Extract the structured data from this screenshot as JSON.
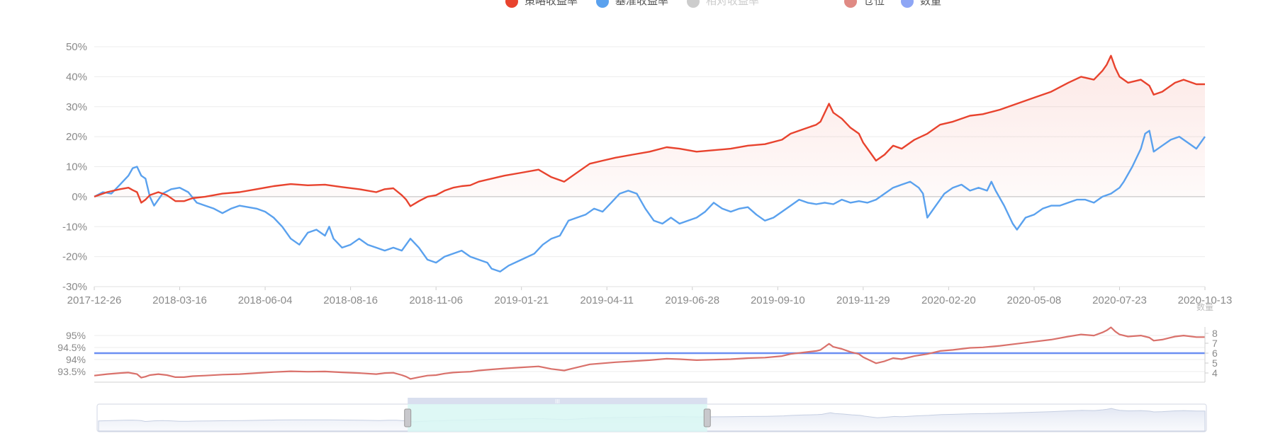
{
  "legend": {
    "items": [
      {
        "label": "策略收益率",
        "color": "#e8432e",
        "state": "on"
      },
      {
        "label": "基准收益率",
        "color": "#5aa1ee",
        "state": "on"
      },
      {
        "label": "相对收益率",
        "color": "#cccccc",
        "state": "off"
      },
      {
        "label": "仓位",
        "color": "#e08a84",
        "state": "on"
      },
      {
        "label": "数量",
        "color": "#8ea6f5",
        "state": "on"
      }
    ]
  },
  "colors": {
    "strategy": "#e8432e",
    "benchmark": "#5aa1ee",
    "position": "#d9716b",
    "quantity": "#6c8ff2",
    "grid": "#ececec",
    "zero_line": "#c8c8c8",
    "slider_fill": "#d8f7f3"
  },
  "chart_data": [
    {
      "type": "line",
      "title": "",
      "xlabel": "",
      "ylabel": "",
      "ylim": [
        -30,
        50
      ],
      "y_unit": "%",
      "y_ticks": [
        "-30%",
        "-20%",
        "-10%",
        "0%",
        "10%",
        "20%",
        "30%",
        "40%",
        "50%"
      ],
      "x_ticks": [
        "2017-12-26",
        "2018-03-16",
        "2018-06-04",
        "2018-08-16",
        "2018-11-06",
        "2019-01-21",
        "2019-04-11",
        "2019-06-28",
        "2019-09-10",
        "2019-11-29",
        "2020-02-20",
        "2020-05-08",
        "2020-07-23",
        "2020-10-13"
      ],
      "grid": true,
      "legend_position": "top",
      "series": [
        {
          "name": "策略收益率",
          "fill_area": true,
          "points": [
            [
              0,
              0
            ],
            [
              3,
              1.5
            ],
            [
              6,
              2.5
            ],
            [
              8,
              3
            ],
            [
              9,
              2.2
            ],
            [
              10,
              1.5
            ],
            [
              11,
              -2
            ],
            [
              12,
              -1
            ],
            [
              13,
              0.5
            ],
            [
              15,
              1.5
            ],
            [
              17,
              0.5
            ],
            [
              19,
              -1.5
            ],
            [
              21,
              -1.5
            ],
            [
              23,
              -0.5
            ],
            [
              26,
              0
            ],
            [
              30,
              1
            ],
            [
              34,
              1.5
            ],
            [
              38,
              2.5
            ],
            [
              42,
              3.5
            ],
            [
              46,
              4.2
            ],
            [
              50,
              3.8
            ],
            [
              54,
              4
            ],
            [
              58,
              3.2
            ],
            [
              62,
              2.5
            ],
            [
              66,
              1.5
            ],
            [
              68,
              2.5
            ],
            [
              70,
              2.8
            ],
            [
              72,
              0.5
            ],
            [
              73,
              -1
            ],
            [
              74,
              -3.2
            ],
            [
              76,
              -1.5
            ],
            [
              78,
              0
            ],
            [
              80,
              0.5
            ],
            [
              82,
              2
            ],
            [
              84,
              3
            ],
            [
              86,
              3.5
            ],
            [
              88,
              3.8
            ],
            [
              90,
              5
            ],
            [
              93,
              6
            ],
            [
              96,
              7
            ],
            [
              100,
              8
            ],
            [
              104,
              9
            ],
            [
              107,
              6.5
            ],
            [
              110,
              5
            ],
            [
              112,
              7
            ],
            [
              114,
              9
            ],
            [
              116,
              11
            ],
            [
              119,
              12
            ],
            [
              122,
              13
            ],
            [
              126,
              14
            ],
            [
              130,
              15
            ],
            [
              134,
              16.5
            ],
            [
              137,
              16
            ],
            [
              141,
              15
            ],
            [
              145,
              15.5
            ],
            [
              149,
              16
            ],
            [
              153,
              17
            ],
            [
              157,
              17.5
            ],
            [
              161,
              19
            ],
            [
              163,
              21
            ],
            [
              166,
              22.5
            ],
            [
              169,
              24
            ],
            [
              170,
              25
            ],
            [
              171,
              28
            ],
            [
              172,
              31
            ],
            [
              173,
              28
            ],
            [
              175,
              26
            ],
            [
              177,
              23
            ],
            [
              179,
              21
            ],
            [
              180,
              18
            ],
            [
              182,
              14
            ],
            [
              183,
              12
            ],
            [
              185,
              14
            ],
            [
              187,
              17
            ],
            [
              189,
              16
            ],
            [
              192,
              19
            ],
            [
              195,
              21
            ],
            [
              198,
              24
            ],
            [
              201,
              25
            ],
            [
              205,
              27
            ],
            [
              208,
              27.5
            ],
            [
              212,
              29
            ],
            [
              216,
              31
            ],
            [
              220,
              33
            ],
            [
              224,
              35
            ],
            [
              228,
              38
            ],
            [
              231,
              40
            ],
            [
              234,
              39
            ],
            [
              236,
              42
            ],
            [
              237,
              44
            ],
            [
              238,
              47
            ],
            [
              239,
              43
            ],
            [
              240,
              40
            ],
            [
              242,
              38
            ],
            [
              245,
              39
            ],
            [
              247,
              37
            ],
            [
              248,
              34
            ],
            [
              250,
              35
            ],
            [
              253,
              38
            ],
            [
              255,
              39
            ],
            [
              258,
              37.5
            ],
            [
              260,
              37.5
            ]
          ]
        },
        {
          "name": "基准收益率",
          "fill_area": false,
          "points": [
            [
              0,
              0
            ],
            [
              2,
              1.5
            ],
            [
              4,
              1
            ],
            [
              6,
              4
            ],
            [
              8,
              7
            ],
            [
              9,
              9.5
            ],
            [
              10,
              10
            ],
            [
              11,
              7
            ],
            [
              12,
              6
            ],
            [
              13,
              0
            ],
            [
              14,
              -3
            ],
            [
              16,
              1
            ],
            [
              18,
              2.5
            ],
            [
              20,
              3
            ],
            [
              22,
              1.5
            ],
            [
              24,
              -2
            ],
            [
              26,
              -3
            ],
            [
              28,
              -4
            ],
            [
              30,
              -5.5
            ],
            [
              32,
              -4
            ],
            [
              34,
              -3
            ],
            [
              36,
              -3.5
            ],
            [
              38,
              -4
            ],
            [
              40,
              -5
            ],
            [
              42,
              -7
            ],
            [
              44,
              -10
            ],
            [
              46,
              -14
            ],
            [
              48,
              -16
            ],
            [
              50,
              -12
            ],
            [
              52,
              -11
            ],
            [
              54,
              -13
            ],
            [
              55,
              -10
            ],
            [
              56,
              -14
            ],
            [
              58,
              -17
            ],
            [
              60,
              -16
            ],
            [
              62,
              -14
            ],
            [
              64,
              -16
            ],
            [
              66,
              -17
            ],
            [
              68,
              -18
            ],
            [
              70,
              -17
            ],
            [
              72,
              -18
            ],
            [
              74,
              -14
            ],
            [
              76,
              -17
            ],
            [
              78,
              -21
            ],
            [
              80,
              -22
            ],
            [
              82,
              -20
            ],
            [
              84,
              -19
            ],
            [
              86,
              -18
            ],
            [
              88,
              -20
            ],
            [
              90,
              -21
            ],
            [
              92,
              -22
            ],
            [
              93,
              -24
            ],
            [
              95,
              -25
            ],
            [
              97,
              -23
            ],
            [
              100,
              -21
            ],
            [
              103,
              -19
            ],
            [
              105,
              -16
            ],
            [
              107,
              -14
            ],
            [
              109,
              -13
            ],
            [
              111,
              -8
            ],
            [
              113,
              -7
            ],
            [
              115,
              -6
            ],
            [
              117,
              -4
            ],
            [
              119,
              -5
            ],
            [
              121,
              -2
            ],
            [
              123,
              1
            ],
            [
              125,
              2
            ],
            [
              127,
              1
            ],
            [
              129,
              -4
            ],
            [
              131,
              -8
            ],
            [
              133,
              -9
            ],
            [
              135,
              -7
            ],
            [
              137,
              -9
            ],
            [
              139,
              -8
            ],
            [
              141,
              -7
            ],
            [
              143,
              -5
            ],
            [
              145,
              -2
            ],
            [
              147,
              -4
            ],
            [
              149,
              -5
            ],
            [
              151,
              -4
            ],
            [
              153,
              -3.5
            ],
            [
              155,
              -6
            ],
            [
              157,
              -8
            ],
            [
              159,
              -7
            ],
            [
              161,
              -5
            ],
            [
              163,
              -3
            ],
            [
              165,
              -1
            ],
            [
              167,
              -2
            ],
            [
              169,
              -2.5
            ],
            [
              171,
              -2
            ],
            [
              173,
              -2.5
            ],
            [
              175,
              -1
            ],
            [
              177,
              -2
            ],
            [
              179,
              -1.5
            ],
            [
              181,
              -2
            ],
            [
              183,
              -1
            ],
            [
              185,
              1
            ],
            [
              187,
              3
            ],
            [
              189,
              4
            ],
            [
              191,
              5
            ],
            [
              193,
              3
            ],
            [
              194,
              1
            ],
            [
              195,
              -7
            ],
            [
              197,
              -3
            ],
            [
              199,
              1
            ],
            [
              201,
              3
            ],
            [
              203,
              4
            ],
            [
              205,
              2
            ],
            [
              207,
              3
            ],
            [
              209,
              2
            ],
            [
              210,
              5
            ],
            [
              211,
              2
            ],
            [
              213,
              -3
            ],
            [
              215,
              -9
            ],
            [
              216,
              -11
            ],
            [
              218,
              -7
            ],
            [
              220,
              -6
            ],
            [
              222,
              -4
            ],
            [
              224,
              -3
            ],
            [
              226,
              -3
            ],
            [
              228,
              -2
            ],
            [
              230,
              -1
            ],
            [
              232,
              -1
            ],
            [
              234,
              -2
            ],
            [
              236,
              0
            ],
            [
              238,
              1
            ],
            [
              240,
              3
            ],
            [
              241,
              5
            ],
            [
              243,
              10
            ],
            [
              245,
              16
            ],
            [
              246,
              21
            ],
            [
              247,
              22
            ],
            [
              248,
              15
            ],
            [
              250,
              17
            ],
            [
              252,
              19
            ],
            [
              254,
              20
            ],
            [
              256,
              18
            ],
            [
              258,
              16
            ],
            [
              260,
              20
            ]
          ]
        }
      ]
    },
    {
      "type": "line",
      "title": "",
      "y_left_ticks": [
        "93.5%",
        "94%",
        "94.5%",
        "95%"
      ],
      "y_right_ticks": [
        "4",
        "5",
        "6",
        "7",
        "8"
      ],
      "y_right_label": "数量",
      "series": [
        {
          "name": "仓位",
          "axis": "left"
        },
        {
          "name": "数量",
          "axis": "right",
          "value_constant": 6
        }
      ]
    }
  ],
  "zoom_slider": {
    "handle_label": "III",
    "window_start_fraction": 0.28,
    "window_end_fraction": 0.55
  }
}
